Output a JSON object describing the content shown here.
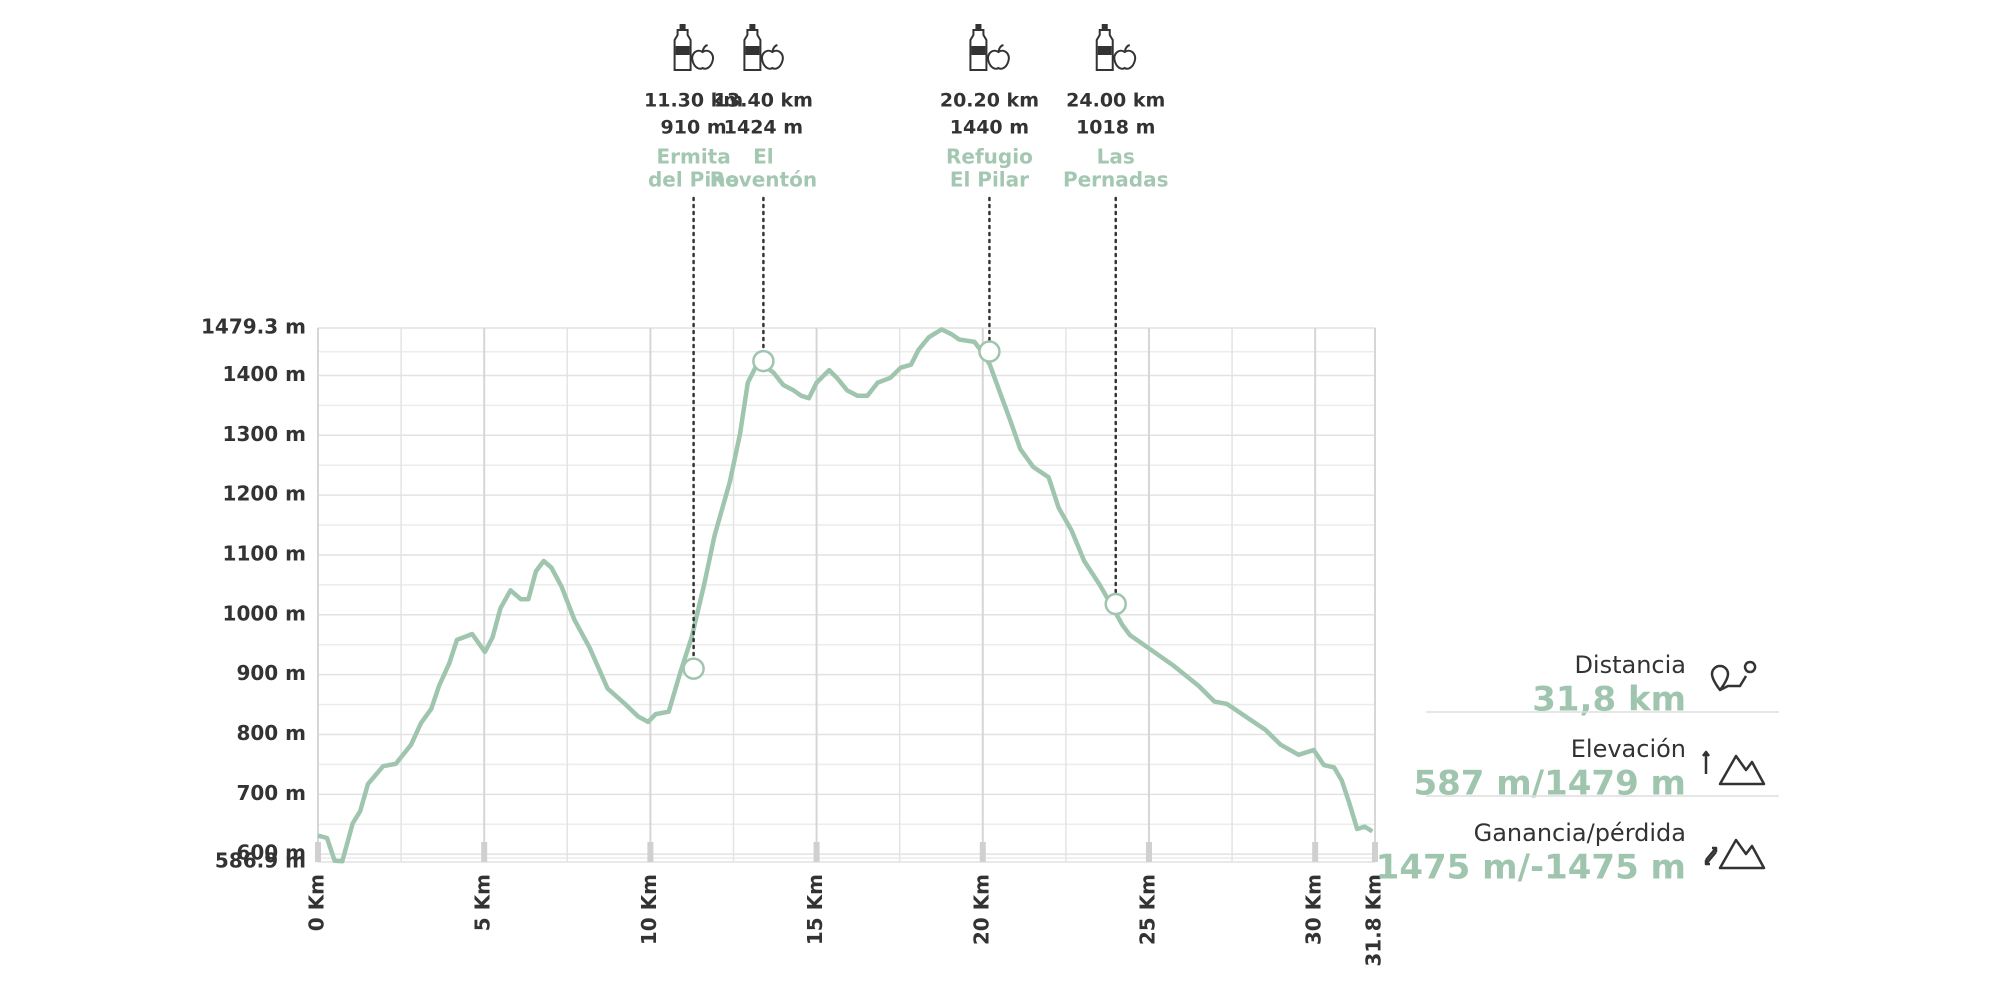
{
  "chart_data": {
    "type": "line",
    "color": "#9fc5ae",
    "grid": true,
    "xlim": [
      0,
      31.8
    ],
    "xticks": [
      {
        "value": 0,
        "label": "0 Km"
      },
      {
        "value": 5,
        "label": "5 Km"
      },
      {
        "value": 10,
        "label": "10 Km"
      },
      {
        "value": 15,
        "label": "15 Km"
      },
      {
        "value": 20,
        "label": "20 Km"
      },
      {
        "value": 25,
        "label": "25 Km"
      },
      {
        "value": 30,
        "label": "30 Km"
      },
      {
        "value": 31.8,
        "label": "31.8 Km"
      }
    ],
    "ylim": [
      586.9,
      1479.3
    ],
    "yticks": [
      {
        "value": 586.9,
        "label": "586.9 m"
      },
      {
        "value": 600,
        "label": "600 m"
      },
      {
        "value": 700,
        "label": "700 m"
      },
      {
        "value": 800,
        "label": "800 m"
      },
      {
        "value": 900,
        "label": "900 m"
      },
      {
        "value": 1000,
        "label": "1000 m"
      },
      {
        "value": 1100,
        "label": "1100 m"
      },
      {
        "value": 1200,
        "label": "1200 m"
      },
      {
        "value": 1300,
        "label": "1300 m"
      },
      {
        "value": 1400,
        "label": "1400 m"
      },
      {
        "value": 1479.3,
        "label": "1479.3 m"
      }
    ],
    "x": [
      0,
      0.27,
      0.5,
      0.73,
      1.04,
      1.27,
      1.5,
      1.96,
      2.34,
      2.8,
      3.1,
      3.41,
      3.64,
      3.95,
      4.18,
      4.64,
      5.02,
      5.25,
      5.49,
      5.79,
      6.1,
      6.33,
      6.56,
      6.79,
      7.02,
      7.33,
      7.71,
      8.17,
      8.71,
      9.24,
      9.63,
      9.93,
      10.16,
      10.55,
      10.89,
      11.24,
      11.62,
      11.93,
      12.39,
      12.7,
      12.93,
      13.16,
      13.39,
      13.7,
      14.0,
      14.31,
      14.54,
      14.77,
      15.0,
      15.38,
      15.61,
      15.92,
      16.23,
      16.53,
      16.84,
      17.22,
      17.53,
      17.84,
      18.07,
      18.38,
      18.76,
      19.06,
      19.29,
      19.75,
      19.98,
      20.21,
      20.52,
      20.83,
      21.13,
      21.52,
      21.98,
      22.28,
      22.67,
      23.05,
      23.51,
      23.9,
      24.2,
      24.43,
      24.97,
      25.74,
      26.5,
      26.97,
      27.35,
      28.04,
      28.5,
      28.96,
      29.5,
      29.96,
      30.26,
      30.57,
      30.8,
      31.03,
      31.26,
      31.49,
      31.72
    ],
    "values": [
      631,
      627,
      589,
      588,
      651,
      672,
      717,
      747,
      751,
      783,
      819,
      843,
      881,
      919,
      958,
      968,
      938,
      962,
      1011,
      1041,
      1026,
      1026,
      1073,
      1090,
      1079,
      1047,
      992,
      945,
      877,
      851,
      830,
      821,
      834,
      838,
      902,
      962,
      1051,
      1132,
      1222,
      1303,
      1388,
      1413,
      1418,
      1405,
      1384,
      1375,
      1366,
      1362,
      1388,
      1409,
      1396,
      1375,
      1366,
      1366,
      1388,
      1396,
      1413,
      1418,
      1443,
      1464,
      1477,
      1469,
      1460,
      1456,
      1439,
      1418,
      1371,
      1324,
      1277,
      1247,
      1230,
      1179,
      1141,
      1090,
      1051,
      1013,
      983,
      966,
      945,
      915,
      881,
      855,
      851,
      825,
      808,
      783,
      766,
      774,
      749,
      745,
      723,
      685,
      642,
      646,
      638
    ],
    "waypoints": [
      {
        "km": 11.3,
        "km_label": "11.30 km",
        "elevation": 910,
        "elevation_label": "910 m",
        "name": [
          "Ermita",
          "del Pino"
        ]
      },
      {
        "km": 13.4,
        "km_label": "13.40 km",
        "elevation": 1424,
        "elevation_label": "1424 m",
        "name": [
          "El",
          "Reventón"
        ]
      },
      {
        "km": 20.2,
        "km_label": "20.20 km",
        "elevation": 1440,
        "elevation_label": "1440 m",
        "name": [
          "Refugio",
          "El Pilar"
        ]
      },
      {
        "km": 24.0,
        "km_label": "24.00 km",
        "elevation": 1018,
        "elevation_label": "1018 m",
        "name": [
          "Las",
          "Pernadas"
        ]
      }
    ],
    "stats": [
      {
        "label": "Distancia",
        "value": "31,8 km"
      },
      {
        "label": "Elevación",
        "value": "587 m/1479 m"
      },
      {
        "label": "Ganancia/pérdida",
        "value": "1475 m/-1475 m"
      }
    ]
  }
}
